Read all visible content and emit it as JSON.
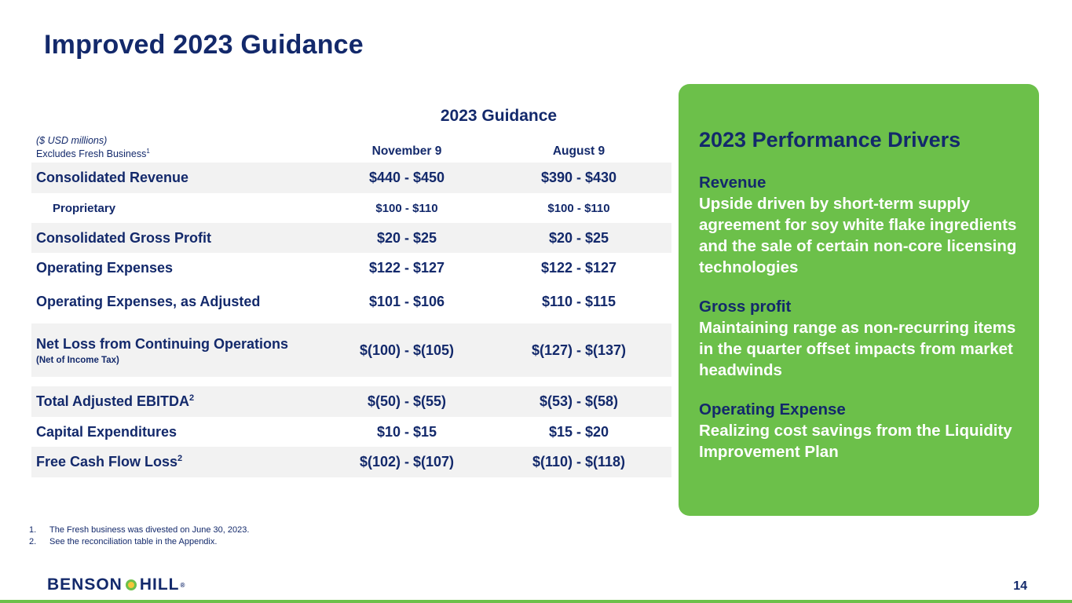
{
  "title": "Improved 2023 Guidance",
  "table": {
    "section_heading": "2023 Guidance",
    "units_note": "($ USD millions)",
    "excludes_note": "Excludes Fresh Business",
    "excludes_sup": "1",
    "columns": [
      "November 9",
      "August 9"
    ],
    "rows": [
      {
        "label": "Consolidated Revenue",
        "nov": "$440 - $450",
        "aug": "$390 - $430"
      },
      {
        "label": "Proprietary",
        "nov": "$100 - $110",
        "aug": "$100 - $110"
      },
      {
        "label": "Consolidated Gross Profit",
        "nov": "$20 - $25",
        "aug": "$20 - $25"
      },
      {
        "label": "Operating Expenses",
        "nov": "$122 - $127",
        "aug": "$122 - $127"
      },
      {
        "label": "Operating Expenses, as Adjusted",
        "nov": "$101 - $106",
        "aug": "$110 - $115"
      },
      {
        "label": "Net Loss from Continuing Operations",
        "note": "(Net of Income Tax)",
        "nov": "$(100) - $(105)",
        "aug": "$(127) - $(137)"
      },
      {
        "label": "Total Adjusted  EBITDA",
        "sup": "2",
        "nov": "$(50) - $(55)",
        "aug": "$(53) - $(58)"
      },
      {
        "label": "Capital Expenditures",
        "nov": "$10 - $15",
        "aug": "$15 - $20"
      },
      {
        "label": "Free Cash Flow Loss",
        "sup": "2",
        "nov": "$(102) - $(107)",
        "aug": "$(110) - $(118)"
      }
    ]
  },
  "panel": {
    "heading": "2023 Performance Drivers",
    "drivers": [
      {
        "head": "Revenue",
        "text": "Upside driven by short-term supply agreement for soy white flake ingredients and the sale of certain non-core licensing technologies"
      },
      {
        "head": "Gross profit",
        "text": "Maintaining range as non-recurring items in the quarter offset impacts from market headwinds"
      },
      {
        "head": "Operating Expense",
        "text": "Realizing cost savings from the Liquidity Improvement Plan"
      }
    ]
  },
  "footnotes": [
    {
      "num": "1.",
      "text": "The Fresh business was divested on June 30, 2023."
    },
    {
      "num": "2.",
      "text": "See the reconciliation table in the Appendix."
    }
  ],
  "logo": {
    "left": "BENSON",
    "right": "HILL",
    "mark": "®"
  },
  "page_number": "14",
  "colors": {
    "navy": "#13296b",
    "green": "#6cc04a",
    "row_shade": "#f2f2f2"
  }
}
